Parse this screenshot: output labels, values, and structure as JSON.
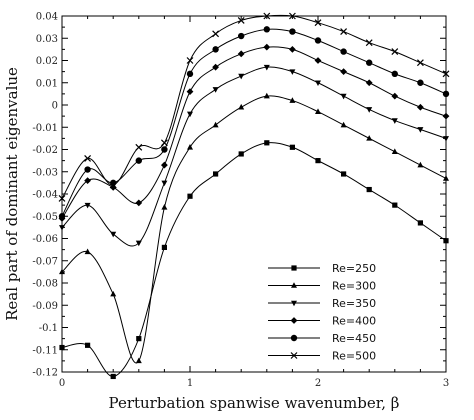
{
  "chart_data": {
    "type": "line",
    "xlabel": "Perturbation spanwise wavenumber, β",
    "ylabel": "Real part of dominant eigenvalue",
    "xlim": [
      0,
      3
    ],
    "ylim": [
      -0.12,
      0.04
    ],
    "xticks": [
      "0",
      "1",
      "2",
      "3"
    ],
    "yticks": [
      "-0.12",
      "-0.11",
      "-0.1",
      "-0.09",
      "-0.08",
      "-0.07",
      "-0.06",
      "-0.05",
      "-0.04",
      "-0.03",
      "-0.02",
      "-0.01",
      "0",
      "0.01",
      "0.02",
      "0.03",
      "0.04"
    ],
    "grid": false,
    "legend_position": "lower-right",
    "series": [
      {
        "name": "Re=250",
        "marker": "square",
        "points": [
          [
            0,
            -0.109
          ],
          [
            0.2,
            -0.108
          ],
          [
            0.4,
            -0.122
          ],
          [
            0.6,
            -0.105
          ],
          [
            0.8,
            -0.064
          ],
          [
            1.0,
            -0.041
          ],
          [
            1.2,
            -0.031
          ],
          [
            1.4,
            -0.022
          ],
          [
            1.6,
            -0.017
          ],
          [
            1.8,
            -0.019
          ],
          [
            2.0,
            -0.025
          ],
          [
            2.2,
            -0.031
          ],
          [
            2.4,
            -0.038
          ],
          [
            2.6,
            -0.045
          ],
          [
            2.8,
            -0.053
          ],
          [
            3.0,
            -0.061
          ]
        ]
      },
      {
        "name": "Re=300",
        "marker": "triangle",
        "points": [
          [
            0,
            -0.075
          ],
          [
            0.2,
            -0.066
          ],
          [
            0.4,
            -0.085
          ],
          [
            0.6,
            -0.115
          ],
          [
            0.8,
            -0.046
          ],
          [
            1.0,
            -0.019
          ],
          [
            1.2,
            -0.009
          ],
          [
            1.4,
            -0.001
          ],
          [
            1.6,
            0.004
          ],
          [
            1.8,
            0.002
          ],
          [
            2.0,
            -0.003
          ],
          [
            2.2,
            -0.009
          ],
          [
            2.4,
            -0.015
          ],
          [
            2.6,
            -0.021
          ],
          [
            2.8,
            -0.027
          ],
          [
            3.0,
            -0.033
          ]
        ]
      },
      {
        "name": "Re=350",
        "marker": "triangle-down",
        "points": [
          [
            0,
            -0.055
          ],
          [
            0.2,
            -0.045
          ],
          [
            0.4,
            -0.058
          ],
          [
            0.6,
            -0.062
          ],
          [
            0.8,
            -0.035
          ],
          [
            1.0,
            -0.004
          ],
          [
            1.2,
            0.007
          ],
          [
            1.4,
            0.013
          ],
          [
            1.6,
            0.017
          ],
          [
            1.8,
            0.015
          ],
          [
            2.0,
            0.01
          ],
          [
            2.2,
            0.004
          ],
          [
            2.4,
            -0.002
          ],
          [
            2.6,
            -0.007
          ],
          [
            2.8,
            -0.011
          ],
          [
            3.0,
            -0.015
          ]
        ]
      },
      {
        "name": "Re=400",
        "marker": "diamond",
        "points": [
          [
            0,
            -0.051
          ],
          [
            0.2,
            -0.034
          ],
          [
            0.4,
            -0.037
          ],
          [
            0.6,
            -0.044
          ],
          [
            0.8,
            -0.027
          ],
          [
            1.0,
            0.006
          ],
          [
            1.2,
            0.017
          ],
          [
            1.4,
            0.023
          ],
          [
            1.6,
            0.026
          ],
          [
            1.8,
            0.025
          ],
          [
            2.0,
            0.02
          ],
          [
            2.2,
            0.015
          ],
          [
            2.4,
            0.01
          ],
          [
            2.6,
            0.004
          ],
          [
            2.8,
            -0.001
          ],
          [
            3.0,
            -0.005
          ]
        ]
      },
      {
        "name": "Re=450",
        "marker": "circle",
        "points": [
          [
            0,
            -0.05
          ],
          [
            0.2,
            -0.029
          ],
          [
            0.4,
            -0.035
          ],
          [
            0.6,
            -0.025
          ],
          [
            0.8,
            -0.02
          ],
          [
            1.0,
            0.014
          ],
          [
            1.2,
            0.025
          ],
          [
            1.4,
            0.031
          ],
          [
            1.6,
            0.034
          ],
          [
            1.8,
            0.033
          ],
          [
            2.0,
            0.029
          ],
          [
            2.2,
            0.024
          ],
          [
            2.4,
            0.019
          ],
          [
            2.6,
            0.014
          ],
          [
            2.8,
            0.01
          ],
          [
            3.0,
            0.005
          ]
        ]
      },
      {
        "name": "Re=500",
        "marker": "cross",
        "points": [
          [
            0,
            -0.042
          ],
          [
            0.2,
            -0.024
          ],
          [
            0.4,
            -0.036
          ],
          [
            0.6,
            -0.019
          ],
          [
            0.8,
            -0.017
          ],
          [
            1.0,
            0.02
          ],
          [
            1.2,
            0.032
          ],
          [
            1.4,
            0.038
          ],
          [
            1.6,
            0.04
          ],
          [
            1.8,
            0.04
          ],
          [
            2.0,
            0.037
          ],
          [
            2.2,
            0.033
          ],
          [
            2.4,
            0.028
          ],
          [
            2.6,
            0.024
          ],
          [
            2.8,
            0.019
          ],
          [
            3.0,
            0.014
          ]
        ]
      }
    ]
  }
}
